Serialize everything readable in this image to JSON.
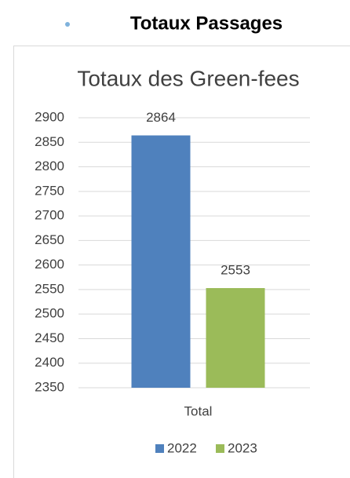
{
  "header": {
    "title": "Totaux Passages"
  },
  "chart_data": {
    "type": "bar",
    "title": "Totaux des Green-fees",
    "categories": [
      "Total"
    ],
    "series": [
      {
        "name": "2022",
        "color": "#4f81bd",
        "values": [
          2864
        ]
      },
      {
        "name": "2023",
        "color": "#9bbb59",
        "values": [
          2553
        ]
      }
    ],
    "ylim": [
      2350,
      2900
    ],
    "yticks": [
      2350,
      2400,
      2450,
      2500,
      2550,
      2600,
      2650,
      2700,
      2750,
      2800,
      2850,
      2900
    ],
    "grid": true,
    "legend": "bottom"
  }
}
